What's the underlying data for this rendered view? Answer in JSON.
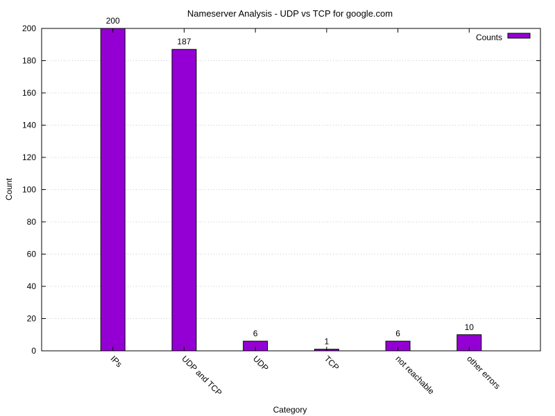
{
  "chart_data": {
    "type": "bar",
    "title": "Nameserver Analysis - UDP vs TCP for google.com",
    "xlabel": "Category",
    "ylabel": "Count",
    "categories": [
      "IPs",
      "UDP and TCP",
      "UDP",
      "TCP",
      "not reachable",
      "other errors"
    ],
    "series": [
      {
        "name": "Counts",
        "values": [
          200,
          187,
          6,
          1,
          6,
          10
        ],
        "color": "#9400d3"
      }
    ],
    "data_labels": [
      "200",
      "187",
      "6",
      "1",
      "6",
      "10"
    ],
    "ylim": [
      0,
      200
    ],
    "yticks": [
      0,
      20,
      40,
      60,
      80,
      100,
      120,
      140,
      160,
      180,
      200
    ],
    "grid": true,
    "legend": {
      "position": "top-right",
      "label": "Counts"
    }
  }
}
